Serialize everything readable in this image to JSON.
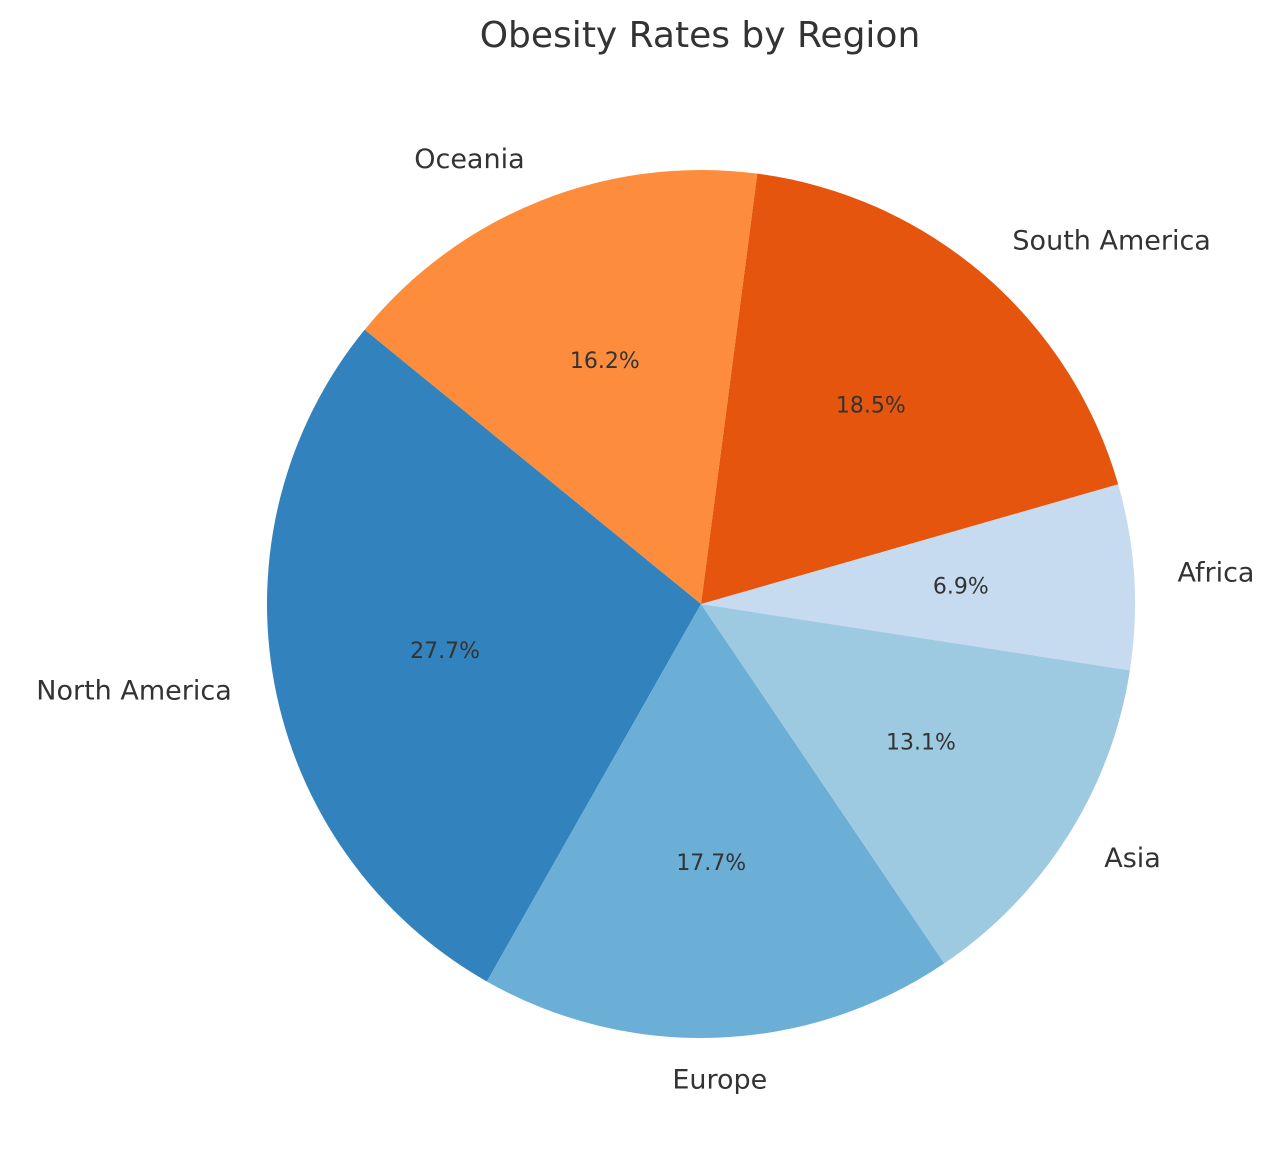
{
  "chart_data": {
    "type": "pie",
    "title": "Obesity Rates by Region",
    "categories": [
      "Africa",
      "South America",
      "Oceania",
      "North America",
      "Europe",
      "Asia"
    ],
    "values": [
      6.9,
      18.5,
      16.2,
      27.7,
      17.7,
      13.1
    ],
    "value_labels": [
      "6.9%",
      "18.5%",
      "16.2%",
      "27.7%",
      "17.7%",
      "13.1%"
    ],
    "colors": [
      "#c6dbef",
      "#e6550d",
      "#fd8d3c",
      "#3182bd",
      "#6baed6",
      "#9ecae1"
    ],
    "start_angle_deg": -8.8,
    "direction": "counterclockwise",
    "legend": "none"
  }
}
